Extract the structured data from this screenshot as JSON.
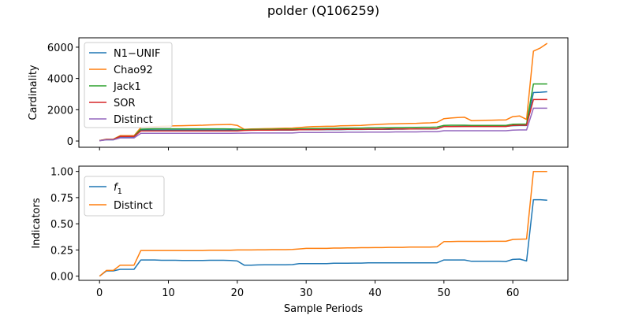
{
  "title": "polder (Q106259)",
  "chart_data": [
    {
      "type": "line",
      "ylabel": "Cardinality",
      "xlim": [
        -3,
        68
      ],
      "ylim": [
        -400,
        6600
      ],
      "yticks": [
        0,
        2000,
        4000,
        6000
      ],
      "xticks": [
        0,
        10,
        20,
        30,
        40,
        50,
        60
      ],
      "show_xtick_labels": false,
      "legend": "top-left",
      "series": [
        {
          "name": "N1−UNIF",
          "color": "#1f77b4",
          "x": [
            0,
            1,
            2,
            3,
            4,
            5,
            6,
            7,
            8,
            9,
            10,
            11,
            12,
            13,
            14,
            15,
            16,
            17,
            18,
            19,
            20,
            21,
            22,
            23,
            24,
            25,
            26,
            27,
            28,
            29,
            30,
            31,
            32,
            33,
            34,
            35,
            36,
            37,
            38,
            39,
            40,
            41,
            42,
            43,
            44,
            45,
            46,
            47,
            48,
            49,
            50,
            51,
            52,
            53,
            54,
            55,
            56,
            57,
            58,
            59,
            60,
            61,
            62,
            63,
            64,
            65
          ],
          "y": [
            30,
            80,
            80,
            250,
            250,
            250,
            700,
            700,
            700,
            700,
            700,
            700,
            700,
            700,
            700,
            700,
            700,
            700,
            700,
            700,
            680,
            700,
            700,
            700,
            700,
            700,
            700,
            700,
            700,
            720,
            720,
            720,
            720,
            730,
            730,
            730,
            740,
            740,
            740,
            750,
            750,
            750,
            750,
            760,
            760,
            770,
            770,
            770,
            770,
            780,
            930,
            930,
            930,
            940,
            940,
            940,
            940,
            940,
            940,
            940,
            980,
            990,
            990,
            3100,
            3120,
            3150
          ]
        },
        {
          "name": "Chao92",
          "color": "#ff7f0e",
          "x": [
            0,
            1,
            2,
            3,
            4,
            5,
            6,
            7,
            8,
            9,
            10,
            11,
            12,
            13,
            14,
            15,
            16,
            17,
            18,
            19,
            20,
            21,
            22,
            23,
            24,
            25,
            26,
            27,
            28,
            29,
            30,
            31,
            32,
            33,
            34,
            35,
            36,
            37,
            38,
            39,
            40,
            41,
            42,
            43,
            44,
            45,
            46,
            47,
            48,
            49,
            50,
            51,
            52,
            53,
            54,
            55,
            56,
            57,
            58,
            59,
            60,
            61,
            62,
            63,
            64,
            65
          ],
          "y": [
            30,
            120,
            120,
            340,
            340,
            340,
            870,
            900,
            920,
            940,
            960,
            970,
            980,
            990,
            1000,
            1010,
            1030,
            1040,
            1050,
            1060,
            1000,
            750,
            770,
            780,
            790,
            800,
            810,
            820,
            830,
            860,
            900,
            920,
            930,
            940,
            940,
            970,
            980,
            990,
            1000,
            1030,
            1050,
            1070,
            1090,
            1100,
            1110,
            1120,
            1130,
            1150,
            1160,
            1190,
            1430,
            1470,
            1500,
            1520,
            1300,
            1310,
            1320,
            1330,
            1340,
            1350,
            1560,
            1600,
            1380,
            5750,
            5950,
            6250
          ]
        },
        {
          "name": "Jack1",
          "color": "#2ca02c",
          "x": [
            0,
            1,
            2,
            3,
            4,
            5,
            6,
            7,
            8,
            9,
            10,
            11,
            12,
            13,
            14,
            15,
            16,
            17,
            18,
            19,
            20,
            21,
            22,
            23,
            24,
            25,
            26,
            27,
            28,
            29,
            30,
            31,
            32,
            33,
            34,
            35,
            36,
            37,
            38,
            39,
            40,
            41,
            42,
            43,
            44,
            45,
            46,
            47,
            48,
            49,
            50,
            51,
            52,
            53,
            54,
            55,
            56,
            57,
            58,
            59,
            60,
            61,
            62,
            63,
            64,
            65
          ],
          "y": [
            30,
            100,
            100,
            300,
            300,
            300,
            760,
            770,
            780,
            780,
            780,
            780,
            780,
            780,
            780,
            780,
            780,
            780,
            780,
            770,
            760,
            730,
            740,
            750,
            750,
            750,
            760,
            760,
            760,
            780,
            790,
            800,
            800,
            810,
            810,
            820,
            820,
            830,
            830,
            840,
            840,
            850,
            850,
            860,
            860,
            870,
            870,
            880,
            880,
            890,
            1000,
            1010,
            1010,
            1010,
            1000,
            1000,
            1000,
            1000,
            1000,
            1000,
            1070,
            1080,
            1080,
            3650,
            3650,
            3650
          ]
        },
        {
          "name": "SOR",
          "color": "#d62728",
          "x": [
            0,
            1,
            2,
            3,
            4,
            5,
            6,
            7,
            8,
            9,
            10,
            11,
            12,
            13,
            14,
            15,
            16,
            17,
            18,
            19,
            20,
            21,
            22,
            23,
            24,
            25,
            26,
            27,
            28,
            29,
            30,
            31,
            32,
            33,
            34,
            35,
            36,
            37,
            38,
            39,
            40,
            41,
            42,
            43,
            44,
            45,
            46,
            47,
            48,
            49,
            50,
            51,
            52,
            53,
            54,
            55,
            56,
            57,
            58,
            59,
            60,
            61,
            62,
            63,
            64,
            65
          ],
          "y": [
            30,
            100,
            100,
            290,
            290,
            290,
            640,
            640,
            640,
            640,
            640,
            640,
            640,
            640,
            640,
            640,
            640,
            640,
            640,
            640,
            640,
            680,
            690,
            700,
            700,
            700,
            710,
            710,
            710,
            720,
            730,
            730,
            730,
            740,
            740,
            740,
            750,
            750,
            750,
            760,
            760,
            760,
            770,
            770,
            770,
            770,
            780,
            780,
            780,
            790,
            920,
            920,
            930,
            930,
            930,
            930,
            930,
            930,
            930,
            930,
            1000,
            1010,
            1010,
            2650,
            2650,
            2650
          ]
        },
        {
          "name": "Distinct",
          "color": "#9467bd",
          "x": [
            0,
            1,
            2,
            3,
            4,
            5,
            6,
            7,
            8,
            9,
            10,
            11,
            12,
            13,
            14,
            15,
            16,
            17,
            18,
            19,
            20,
            21,
            22,
            23,
            24,
            25,
            26,
            27,
            28,
            29,
            30,
            31,
            32,
            33,
            34,
            35,
            36,
            37,
            38,
            39,
            40,
            41,
            42,
            43,
            44,
            45,
            46,
            47,
            48,
            49,
            50,
            51,
            52,
            53,
            54,
            55,
            56,
            57,
            58,
            59,
            60,
            61,
            62,
            63,
            64,
            65
          ],
          "y": [
            20,
            80,
            80,
            200,
            200,
            200,
            490,
            490,
            490,
            490,
            490,
            490,
            490,
            490,
            490,
            490,
            490,
            490,
            490,
            490,
            500,
            500,
            510,
            510,
            510,
            510,
            510,
            510,
            510,
            540,
            540,
            540,
            540,
            550,
            550,
            550,
            560,
            560,
            560,
            570,
            570,
            570,
            570,
            580,
            580,
            580,
            580,
            590,
            590,
            590,
            660,
            660,
            660,
            660,
            660,
            660,
            660,
            660,
            660,
            660,
            700,
            710,
            710,
            2100,
            2100,
            2100
          ]
        }
      ]
    },
    {
      "type": "line",
      "ylabel": "Indicators",
      "xlabel": "Sample Periods",
      "xlim": [
        -3,
        68
      ],
      "ylim": [
        -0.04,
        1.05
      ],
      "yticks": [
        0.0,
        0.25,
        0.5,
        0.75,
        1.0
      ],
      "ytick_labels": [
        "0.00",
        "0.25",
        "0.50",
        "0.75",
        "1.00"
      ],
      "xticks": [
        0,
        10,
        20,
        30,
        40,
        50,
        60
      ],
      "legend": "top-left",
      "series": [
        {
          "name": "f1",
          "color": "#1f77b4",
          "x": [
            0,
            1,
            2,
            3,
            4,
            5,
            6,
            7,
            8,
            9,
            10,
            11,
            12,
            13,
            14,
            15,
            16,
            17,
            18,
            19,
            20,
            21,
            22,
            23,
            24,
            25,
            26,
            27,
            28,
            29,
            30,
            31,
            32,
            33,
            34,
            35,
            36,
            37,
            38,
            39,
            40,
            41,
            42,
            43,
            44,
            45,
            46,
            47,
            48,
            49,
            50,
            51,
            52,
            53,
            54,
            55,
            56,
            57,
            58,
            59,
            60,
            61,
            62,
            63,
            64,
            65
          ],
          "y": [
            0.0,
            0.05,
            0.05,
            0.065,
            0.065,
            0.065,
            0.155,
            0.155,
            0.155,
            0.152,
            0.152,
            0.152,
            0.15,
            0.15,
            0.15,
            0.15,
            0.152,
            0.152,
            0.152,
            0.15,
            0.145,
            0.105,
            0.105,
            0.107,
            0.108,
            0.108,
            0.108,
            0.108,
            0.11,
            0.12,
            0.12,
            0.12,
            0.12,
            0.12,
            0.123,
            0.123,
            0.123,
            0.125,
            0.125,
            0.127,
            0.127,
            0.128,
            0.128,
            0.128,
            0.128,
            0.128,
            0.128,
            0.128,
            0.128,
            0.128,
            0.155,
            0.155,
            0.155,
            0.155,
            0.142,
            0.142,
            0.142,
            0.142,
            0.142,
            0.14,
            0.16,
            0.163,
            0.145,
            0.73,
            0.73,
            0.725
          ]
        },
        {
          "name": "Distinct",
          "color": "#ff7f0e",
          "x": [
            0,
            1,
            2,
            3,
            4,
            5,
            6,
            7,
            8,
            9,
            10,
            11,
            12,
            13,
            14,
            15,
            16,
            17,
            18,
            19,
            20,
            21,
            22,
            23,
            24,
            25,
            26,
            27,
            28,
            29,
            30,
            31,
            32,
            33,
            34,
            35,
            36,
            37,
            38,
            39,
            40,
            41,
            42,
            43,
            44,
            45,
            46,
            47,
            48,
            49,
            50,
            51,
            52,
            53,
            54,
            55,
            56,
            57,
            58,
            59,
            60,
            61,
            62,
            63,
            64,
            65
          ],
          "y": [
            0.0,
            0.055,
            0.055,
            0.105,
            0.105,
            0.105,
            0.245,
            0.245,
            0.245,
            0.245,
            0.245,
            0.245,
            0.245,
            0.245,
            0.245,
            0.245,
            0.248,
            0.248,
            0.248,
            0.248,
            0.25,
            0.25,
            0.25,
            0.252,
            0.252,
            0.253,
            0.253,
            0.253,
            0.255,
            0.26,
            0.265,
            0.265,
            0.265,
            0.265,
            0.268,
            0.268,
            0.27,
            0.27,
            0.272,
            0.272,
            0.273,
            0.273,
            0.275,
            0.275,
            0.275,
            0.277,
            0.277,
            0.278,
            0.278,
            0.28,
            0.33,
            0.33,
            0.332,
            0.332,
            0.332,
            0.332,
            0.332,
            0.333,
            0.333,
            0.333,
            0.35,
            0.353,
            0.355,
            1.0,
            1.0,
            1.0
          ]
        }
      ]
    }
  ]
}
